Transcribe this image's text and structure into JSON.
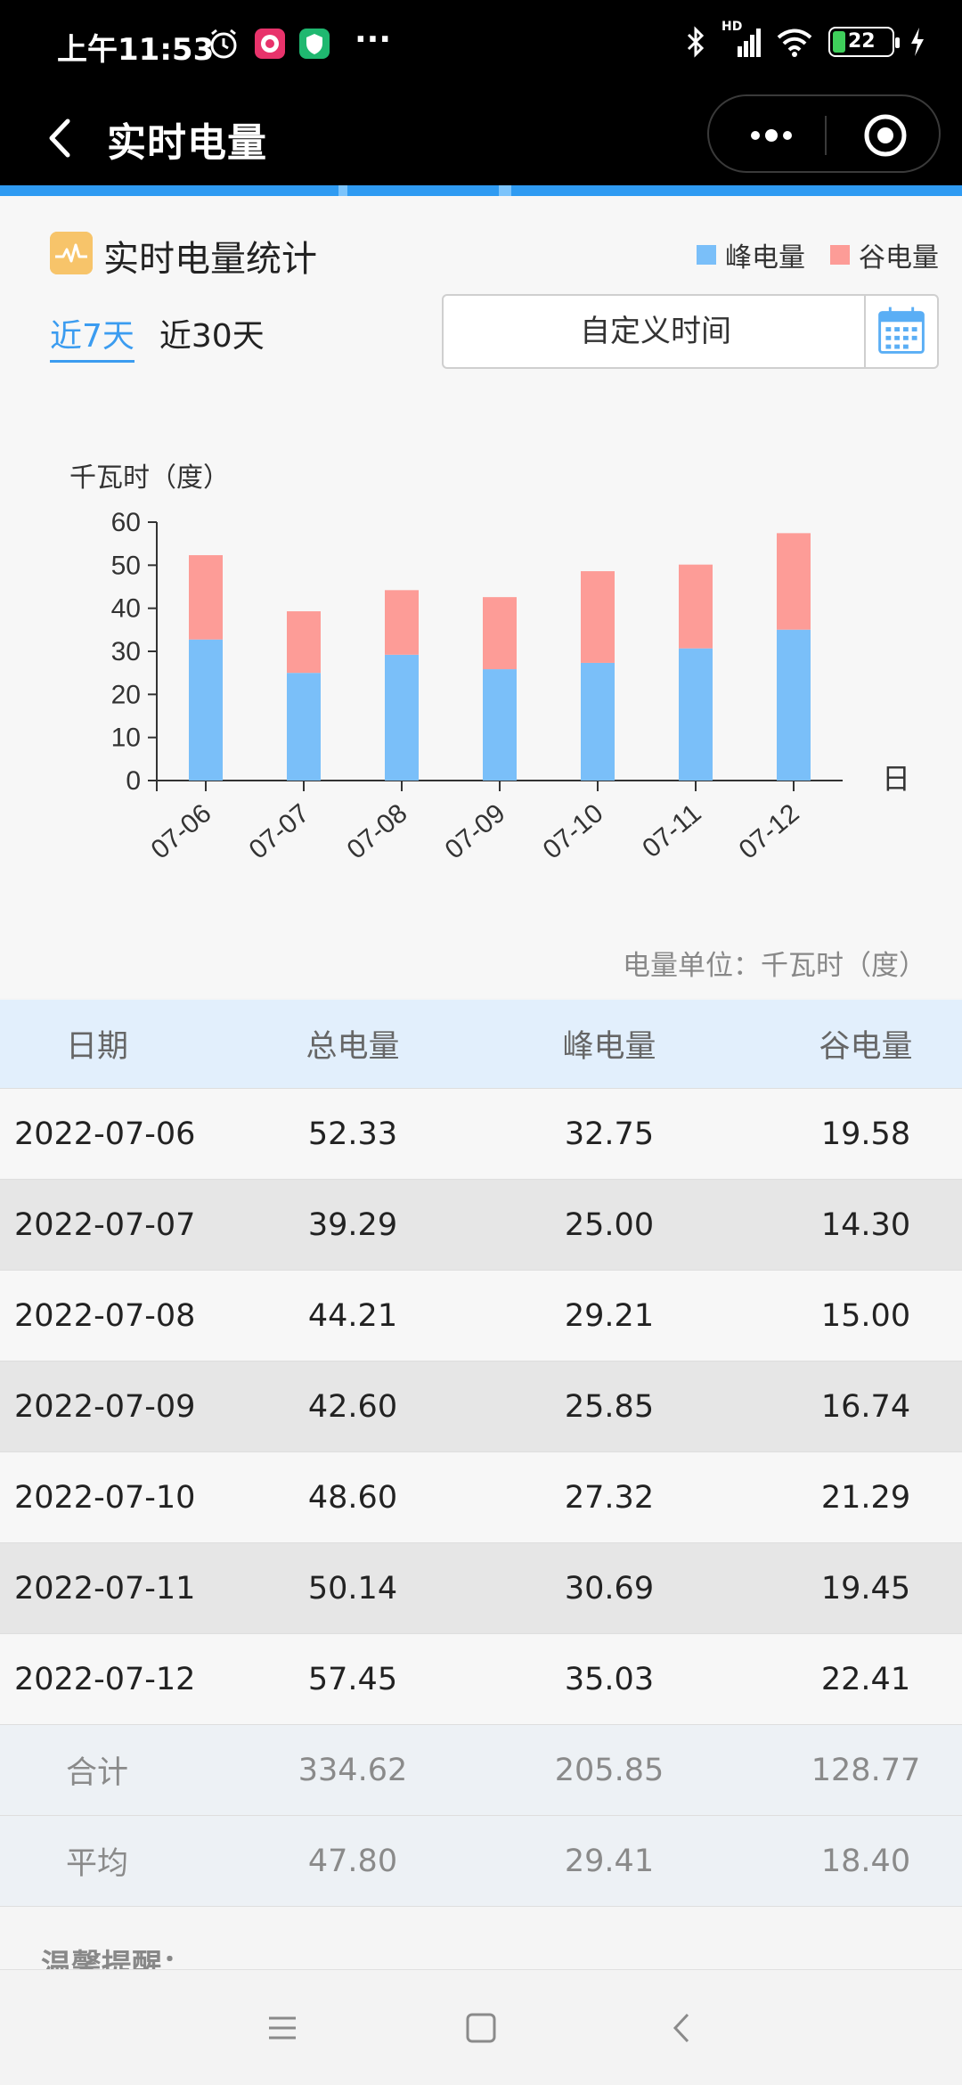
{
  "status_bar": {
    "time": "上午11:53",
    "more": "···",
    "battery": "22",
    "signal_tag": "HD"
  },
  "title_bar": {
    "title": "实时电量"
  },
  "card": {
    "title": "实时电量统计",
    "legend": [
      {
        "name": "峰电量",
        "color": "#7abff9"
      },
      {
        "name": "谷电量",
        "color": "#fd9c97"
      }
    ],
    "range_tabs": [
      {
        "label": "近7天",
        "active": true
      },
      {
        "label": "近30天",
        "active": false
      }
    ],
    "custom_time_label": "自定义时间",
    "unit_note": "电量单位：千瓦时（度）"
  },
  "chart_data": {
    "type": "bar",
    "stacked": true,
    "ylabel": "千瓦时（度）",
    "xlabel": "日",
    "categories": [
      "07-06",
      "07-07",
      "07-08",
      "07-09",
      "07-10",
      "07-11",
      "07-12"
    ],
    "series": [
      {
        "name": "峰电量",
        "color": "#7abff9",
        "values": [
          32.75,
          25.0,
          29.21,
          25.85,
          27.32,
          30.69,
          35.03
        ]
      },
      {
        "name": "谷电量",
        "color": "#fd9c97",
        "values": [
          19.58,
          14.3,
          15.0,
          16.74,
          21.29,
          19.45,
          22.41
        ]
      }
    ],
    "ylim": [
      0,
      60
    ],
    "yticks": [
      0,
      10,
      20,
      30,
      40,
      50,
      60
    ],
    "grid": false
  },
  "table": {
    "headers": [
      "日期",
      "总电量",
      "峰电量",
      "谷电量"
    ],
    "rows": [
      [
        "2022-07-06",
        "52.33",
        "32.75",
        "19.58"
      ],
      [
        "2022-07-07",
        "39.29",
        "25.00",
        "14.30"
      ],
      [
        "2022-07-08",
        "44.21",
        "29.21",
        "15.00"
      ],
      [
        "2022-07-09",
        "42.60",
        "25.85",
        "16.74"
      ],
      [
        "2022-07-10",
        "48.60",
        "27.32",
        "21.29"
      ],
      [
        "2022-07-11",
        "50.14",
        "30.69",
        "19.45"
      ],
      [
        "2022-07-12",
        "57.45",
        "35.03",
        "22.41"
      ]
    ],
    "summary": [
      [
        "合计",
        "334.62",
        "205.85",
        "128.77"
      ],
      [
        "平均",
        "47.80",
        "29.41",
        "18.40"
      ]
    ]
  },
  "tips_label": "温馨提醒："
}
